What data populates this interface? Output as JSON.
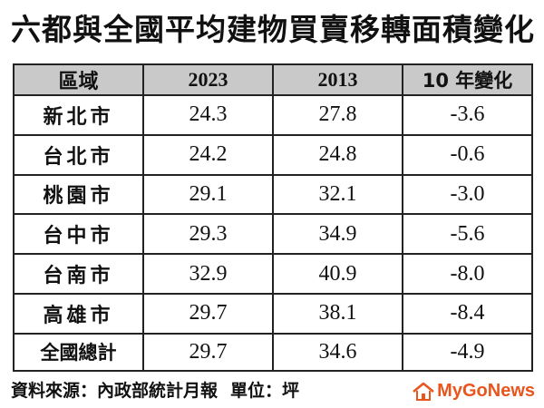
{
  "title": "六都與全國平均建物買賣移轉面積變化",
  "chart_data": {
    "type": "table",
    "columns": [
      "區域",
      "2023",
      "2013",
      "10 年變化"
    ],
    "rows": [
      {
        "region": "新北市",
        "v2023": "24.3",
        "v2013": "27.8",
        "change": "-3.6"
      },
      {
        "region": "台北市",
        "v2023": "24.2",
        "v2013": "24.8",
        "change": "-0.6"
      },
      {
        "region": "桃園市",
        "v2023": "29.1",
        "v2013": "32.1",
        "change": "-3.0"
      },
      {
        "region": "台中市",
        "v2023": "29.3",
        "v2013": "34.9",
        "change": "-5.6"
      },
      {
        "region": "台南市",
        "v2023": "32.9",
        "v2013": "40.9",
        "change": "-8.0"
      },
      {
        "region": "高雄市",
        "v2023": "29.7",
        "v2013": "38.1",
        "change": "-8.4"
      },
      {
        "region": "全國總計",
        "v2023": "29.7",
        "v2013": "34.6",
        "change": "-4.9"
      }
    ]
  },
  "footer": {
    "source": "資料來源：內政部統計月報",
    "unit": "單位：坪"
  },
  "logo": {
    "my": "My",
    "go": "Go",
    "news": "News",
    "icon": "house-icon",
    "color": "#e8551d"
  },
  "colors": {
    "header_bg": "#c9c9c9",
    "border": "#222222"
  }
}
